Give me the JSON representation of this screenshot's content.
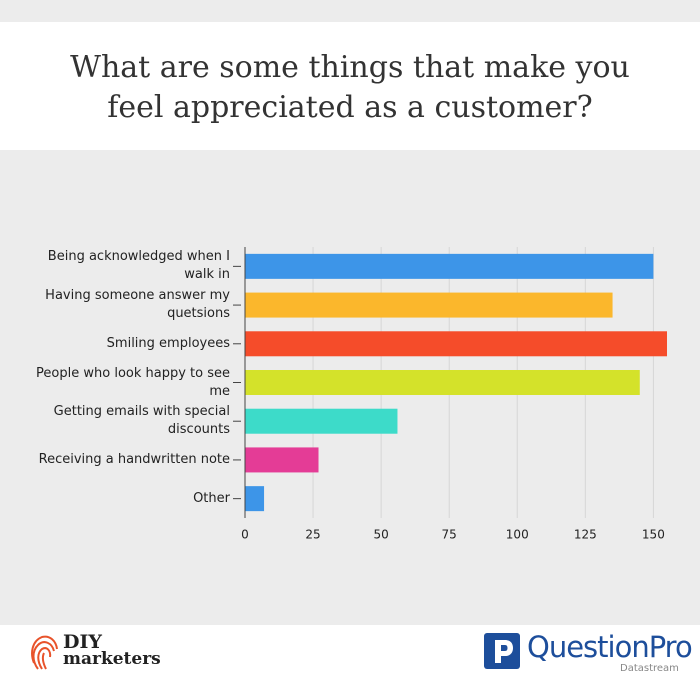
{
  "chart_data": {
    "type": "bar",
    "orientation": "horizontal",
    "title": "What are some things that make you feel appreciated as a customer?",
    "categories": [
      "Being acknowledged when I walk in",
      "Having someone answer my quetsions",
      "Smiling employees",
      "People who look happy to see me",
      "Getting emails with special discounts",
      "Receiving a handwritten note",
      "Other"
    ],
    "values": [
      150,
      135,
      155,
      145,
      56,
      27,
      7
    ],
    "colors": [
      "#3d95e8",
      "#fbb72c",
      "#f54c2a",
      "#d4e22a",
      "#3ddbc9",
      "#e43c96",
      "#3d95e8"
    ],
    "xlim": [
      0,
      155
    ],
    "xticks": [
      0,
      25,
      50,
      75,
      100,
      125,
      150
    ],
    "grid": true
  },
  "footer": {
    "left_logo_top": "DIY",
    "left_logo_bottom": "marketers",
    "right_logo": "QuestionPro",
    "right_tagline": "Datastream"
  }
}
